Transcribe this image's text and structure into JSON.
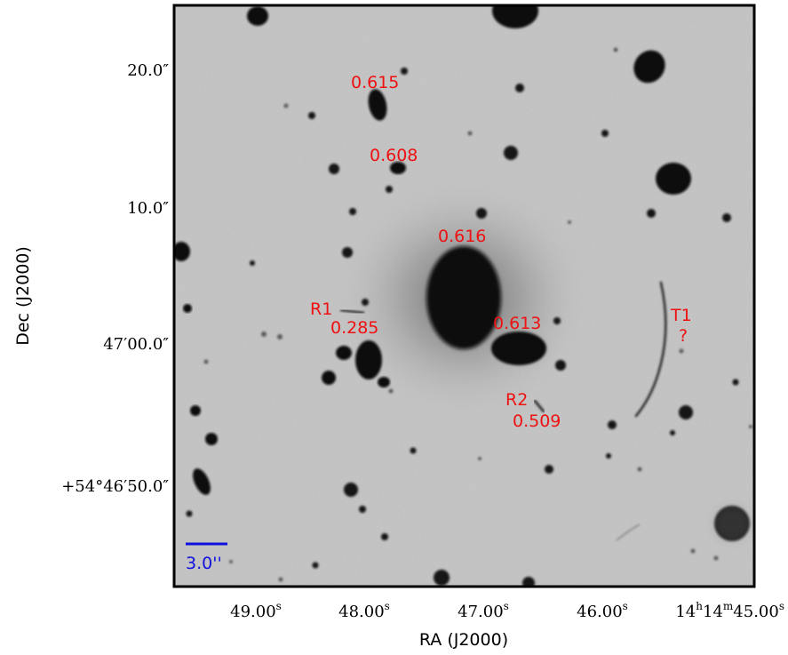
{
  "figure": {
    "type": "astronomical-image",
    "x_axis": {
      "title": "RA (J2000)",
      "ticks": [
        {
          "main": "49.00",
          "sup": "s"
        },
        {
          "main": "48.00",
          "sup": "s"
        },
        {
          "main": "47.00",
          "sup": "s"
        },
        {
          "main": "46.00",
          "sup": "s"
        },
        {
          "main": "14",
          "sup": "h",
          "main2": "14",
          "sup2": "m",
          "main3": "45.00",
          "sup3": "s"
        }
      ]
    },
    "y_axis": {
      "title": "Dec (J2000)",
      "ticks": [
        {
          "text": "20.0″"
        },
        {
          "text": "10.0″"
        },
        {
          "text": "47′00.0″"
        },
        {
          "text": "+54°46′50.0″"
        }
      ]
    },
    "annotations": [
      {
        "text": "0.615",
        "color": "#ee1111"
      },
      {
        "text": "0.608",
        "color": "#ee1111"
      },
      {
        "text": "0.616",
        "color": "#ee1111"
      },
      {
        "text": "R1",
        "color": "#ee1111"
      },
      {
        "text": "0.285",
        "color": "#ee1111"
      },
      {
        "text": "0.613",
        "color": "#ee1111"
      },
      {
        "text": "T1",
        "color": "#ee1111"
      },
      {
        "text": "?",
        "color": "#ee1111"
      },
      {
        "text": "R2",
        "color": "#ee1111"
      },
      {
        "text": "0.509",
        "color": "#ee1111"
      }
    ],
    "scale_bar": {
      "label": "3.0''",
      "color": "#1010dd"
    },
    "colors": {
      "sky_background": "#c9c9c9",
      "sources": "#0b0b0b",
      "frame": "#000000"
    }
  }
}
